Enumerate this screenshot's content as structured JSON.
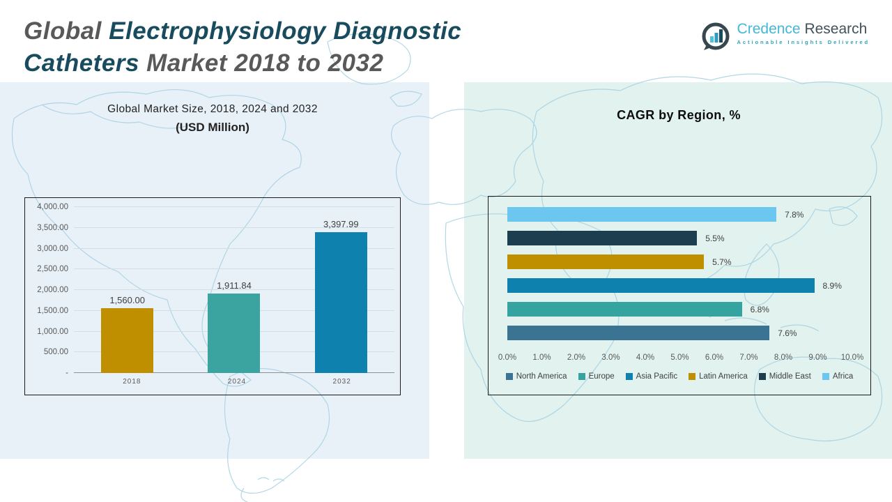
{
  "header": {
    "title_seg1": "Global ",
    "title_seg2": "Electrophysiology Diagnostic Catheters",
    "title_seg3": " Market 2018 to 2032"
  },
  "logo": {
    "name_part1": "Credence ",
    "name_part2": "Research",
    "tagline": "Actionable Insights Delivered"
  },
  "colors": {
    "gold": "#bf8f00",
    "teal": "#35a3a0",
    "blue": "#0e81ae",
    "steel": "#3a7492",
    "navy": "#1d3e4e",
    "sky": "#6bc7ef",
    "panel_left": "#e9f1f8",
    "panel_right": "#e1f2ef"
  },
  "chart_data": [
    {
      "type": "bar",
      "title_line1": "Global Market Size, 2018, 2024 and 2032",
      "title_line2": "(USD Million)",
      "categories": [
        "2018",
        "2024",
        "2032"
      ],
      "values": [
        1560.0,
        1911.84,
        3397.99
      ],
      "value_labels": [
        "1,560.00",
        "1,911.84",
        "3,397.99"
      ],
      "bar_colors": [
        "#bf8f00",
        "#3ba3a0",
        "#0e81ae"
      ],
      "ylim": [
        0,
        4000
      ],
      "yticks": [
        4000,
        3500,
        3000,
        2500,
        2000,
        1500,
        1000,
        500,
        0
      ],
      "ytick_labels": [
        "4,000.00",
        "3,500.00",
        "3,000.00",
        "2,500.00",
        "2,000.00",
        "1,500.00",
        "1,000.00",
        "500.00",
        "-"
      ],
      "grid": true,
      "legend_position": "none"
    },
    {
      "type": "bar-horizontal",
      "title": "CAGR by Region, %",
      "categories_top_to_bottom": [
        "Africa",
        "Middle East",
        "Latin America",
        "Asia Pacific",
        "Europe",
        "North America"
      ],
      "values": [
        7.8,
        5.5,
        5.7,
        8.9,
        6.8,
        7.6
      ],
      "value_labels": [
        "7.8%",
        "5.5%",
        "5.7%",
        "8.9%",
        "6.8%",
        "7.6%"
      ],
      "bar_colors": [
        "#6bc7ef",
        "#1d3e4e",
        "#bf8f00",
        "#0e81ae",
        "#35a3a0",
        "#3a7492"
      ],
      "xlim": [
        0,
        10
      ],
      "xtick_labels": [
        "0.0%",
        "1.0%",
        "2.0%",
        "3.0%",
        "4.0%",
        "5.0%",
        "6.0%",
        "7.0%",
        "8.0%",
        "9.0%",
        "10.0%"
      ],
      "grid": false,
      "legend_position": "bottom",
      "legend": [
        {
          "label": "North America",
          "color": "#3a7492"
        },
        {
          "label": "Europe",
          "color": "#35a3a0"
        },
        {
          "label": "Asia Pacific",
          "color": "#0e81ae"
        },
        {
          "label": "Latin America",
          "color": "#bf8f00"
        },
        {
          "label": "Middle East",
          "color": "#1d3e4e"
        },
        {
          "label": "Africa",
          "color": "#6bc7ef"
        }
      ]
    }
  ]
}
